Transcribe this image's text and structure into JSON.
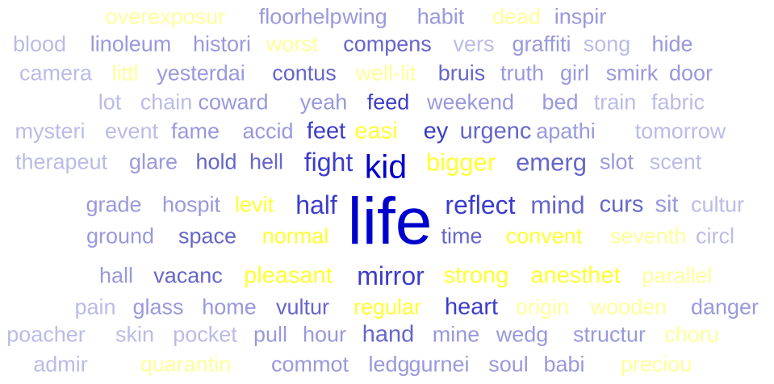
{
  "colors": {
    "darkest": "#0000cc",
    "dark": "#3c3ccc",
    "mid": "#6666cc",
    "light": "#9999dd",
    "lightest": "#bbbbe8",
    "yellow": "#ffff33",
    "yellow_pale": "#ffff99"
  },
  "words": [
    {
      "text": "overexposur",
      "tone": "yellow_pale"
    },
    {
      "text": "floor",
      "tone": "light"
    },
    {
      "text": "help",
      "tone": "light"
    },
    {
      "text": "wing",
      "tone": "light"
    },
    {
      "text": "habit",
      "tone": "light"
    },
    {
      "text": "dead",
      "tone": "yellow_pale"
    },
    {
      "text": "inspir",
      "tone": "light"
    },
    {
      "text": "blood",
      "tone": "lightest"
    },
    {
      "text": "linoleum",
      "tone": "light"
    },
    {
      "text": "histori",
      "tone": "light"
    },
    {
      "text": "worst",
      "tone": "yellow_pale"
    },
    {
      "text": "compens",
      "tone": "mid"
    },
    {
      "text": "vers",
      "tone": "lightest"
    },
    {
      "text": "graffiti",
      "tone": "light"
    },
    {
      "text": "song",
      "tone": "lightest"
    },
    {
      "text": "hide",
      "tone": "light"
    },
    {
      "text": "camera",
      "tone": "lightest"
    },
    {
      "text": "littl",
      "tone": "yellow_pale"
    },
    {
      "text": "yesterdai",
      "tone": "light"
    },
    {
      "text": "contus",
      "tone": "mid"
    },
    {
      "text": "well-lit",
      "tone": "yellow_pale"
    },
    {
      "text": "bruis",
      "tone": "mid"
    },
    {
      "text": "truth",
      "tone": "light"
    },
    {
      "text": "girl",
      "tone": "light"
    },
    {
      "text": "smirk",
      "tone": "light"
    },
    {
      "text": "door",
      "tone": "light"
    },
    {
      "text": "lot",
      "tone": "lightest"
    },
    {
      "text": "chain",
      "tone": "lightest"
    },
    {
      "text": "coward",
      "tone": "light"
    },
    {
      "text": "yeah",
      "tone": "light"
    },
    {
      "text": "feed",
      "tone": "dark"
    },
    {
      "text": "weekend",
      "tone": "light"
    },
    {
      "text": "bed",
      "tone": "light"
    },
    {
      "text": "train",
      "tone": "lightest"
    },
    {
      "text": "fabric",
      "tone": "lightest"
    },
    {
      "text": "mysteri",
      "tone": "lightest"
    },
    {
      "text": "event",
      "tone": "lightest"
    },
    {
      "text": "fame",
      "tone": "light"
    },
    {
      "text": "accid",
      "tone": "light"
    },
    {
      "text": "feet",
      "tone": "dark"
    },
    {
      "text": "easi",
      "tone": "yellow"
    },
    {
      "text": "ey",
      "tone": "dark"
    },
    {
      "text": "urgenc",
      "tone": "mid"
    },
    {
      "text": "apathi",
      "tone": "light"
    },
    {
      "text": "tomorrow",
      "tone": "lightest"
    },
    {
      "text": "therapeut",
      "tone": "lightest"
    },
    {
      "text": "glare",
      "tone": "light"
    },
    {
      "text": "hold",
      "tone": "mid"
    },
    {
      "text": "hell",
      "tone": "mid"
    },
    {
      "text": "fight",
      "tone": "dark"
    },
    {
      "text": "kid",
      "tone": "darkest"
    },
    {
      "text": "bigger",
      "tone": "yellow"
    },
    {
      "text": "emerg",
      "tone": "mid"
    },
    {
      "text": "slot",
      "tone": "light"
    },
    {
      "text": "scent",
      "tone": "lightest"
    },
    {
      "text": "grade",
      "tone": "light"
    },
    {
      "text": "hospit",
      "tone": "light"
    },
    {
      "text": "levit",
      "tone": "yellow"
    },
    {
      "text": "half",
      "tone": "dark"
    },
    {
      "text": "life",
      "tone": "darkest"
    },
    {
      "text": "reflect",
      "tone": "dark"
    },
    {
      "text": "mind",
      "tone": "mid"
    },
    {
      "text": "curs",
      "tone": "mid"
    },
    {
      "text": "sit",
      "tone": "light"
    },
    {
      "text": "cultur",
      "tone": "lightest"
    },
    {
      "text": "ground",
      "tone": "light"
    },
    {
      "text": "space",
      "tone": "mid"
    },
    {
      "text": "normal",
      "tone": "yellow"
    },
    {
      "text": "time",
      "tone": "mid"
    },
    {
      "text": "convent",
      "tone": "yellow"
    },
    {
      "text": "seventh",
      "tone": "yellow_pale"
    },
    {
      "text": "circl",
      "tone": "lightest"
    },
    {
      "text": "hall",
      "tone": "light"
    },
    {
      "text": "vacanc",
      "tone": "mid"
    },
    {
      "text": "pleasant",
      "tone": "yellow"
    },
    {
      "text": "mirror",
      "tone": "dark"
    },
    {
      "text": "strong",
      "tone": "yellow"
    },
    {
      "text": "anesthet",
      "tone": "yellow"
    },
    {
      "text": "parallel",
      "tone": "yellow_pale"
    },
    {
      "text": "pain",
      "tone": "lightest"
    },
    {
      "text": "glass",
      "tone": "light"
    },
    {
      "text": "home",
      "tone": "light"
    },
    {
      "text": "vultur",
      "tone": "mid"
    },
    {
      "text": "regular",
      "tone": "yellow"
    },
    {
      "text": "heart",
      "tone": "dark"
    },
    {
      "text": "origin",
      "tone": "yellow_pale"
    },
    {
      "text": "wooden",
      "tone": "yellow_pale"
    },
    {
      "text": "danger",
      "tone": "light"
    },
    {
      "text": "poacher",
      "tone": "lightest"
    },
    {
      "text": "skin",
      "tone": "lightest"
    },
    {
      "text": "pocket",
      "tone": "lightest"
    },
    {
      "text": "pull",
      "tone": "light"
    },
    {
      "text": "hour",
      "tone": "light"
    },
    {
      "text": "hand",
      "tone": "mid"
    },
    {
      "text": "mine",
      "tone": "light"
    },
    {
      "text": "wedg",
      "tone": "light"
    },
    {
      "text": "structur",
      "tone": "light"
    },
    {
      "text": "choru",
      "tone": "yellow_pale"
    },
    {
      "text": "admir",
      "tone": "lightest"
    },
    {
      "text": "quarantin",
      "tone": "yellow_pale"
    },
    {
      "text": "commot",
      "tone": "light"
    },
    {
      "text": "ledg",
      "tone": "light"
    },
    {
      "text": "gurnei",
      "tone": "light"
    },
    {
      "text": "soul",
      "tone": "light"
    },
    {
      "text": "babi",
      "tone": "light"
    },
    {
      "text": "preciou",
      "tone": "yellow_pale"
    }
  ]
}
